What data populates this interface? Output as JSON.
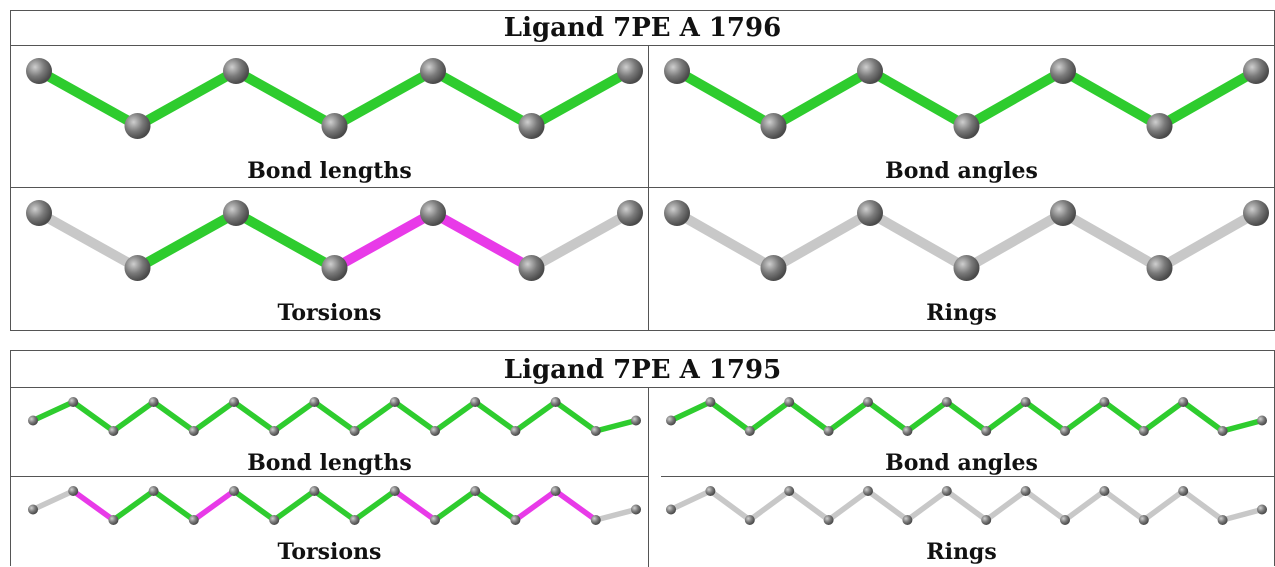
{
  "tables": [
    {
      "title": "Ligand 7PE A 1796",
      "size": "large",
      "panels": [
        {
          "caption": "Bond lengths",
          "bonds": [
            "green",
            "green",
            "green",
            "green",
            "green",
            "green"
          ]
        },
        {
          "caption": "Bond angles",
          "bonds": [
            "green",
            "green",
            "green",
            "green",
            "green",
            "green"
          ]
        },
        {
          "caption": "Torsions",
          "bonds": [
            "gray",
            "green",
            "green",
            "magenta",
            "magenta",
            "gray"
          ]
        },
        {
          "caption": "Rings",
          "bonds": [
            "gray",
            "gray",
            "gray",
            "gray",
            "gray",
            "gray"
          ]
        }
      ]
    },
    {
      "title": "Ligand 7PE A 1795",
      "size": "small",
      "panels": [
        {
          "caption": "Bond lengths",
          "bonds": [
            "green",
            "green",
            "green",
            "green",
            "green",
            "green",
            "green",
            "green",
            "green",
            "green",
            "green",
            "green",
            "green",
            "green",
            "green"
          ]
        },
        {
          "caption": "Bond angles",
          "bonds": [
            "green",
            "green",
            "green",
            "green",
            "green",
            "green",
            "green",
            "green",
            "green",
            "green",
            "green",
            "green",
            "green",
            "green",
            "green"
          ]
        },
        {
          "caption": "Torsions",
          "bonds": [
            "gray",
            "magenta",
            "green",
            "green",
            "magenta",
            "green",
            "green",
            "green",
            "green",
            "magenta",
            "green",
            "green",
            "magenta",
            "magenta",
            "gray"
          ]
        },
        {
          "caption": "Rings",
          "bonds": [
            "gray",
            "gray",
            "gray",
            "gray",
            "gray",
            "gray",
            "gray",
            "gray",
            "gray",
            "gray",
            "gray",
            "gray",
            "gray",
            "gray",
            "gray"
          ]
        }
      ]
    }
  ],
  "colors": {
    "green": "#2ecc2e",
    "magenta": "#e83ae8",
    "gray": "#c8c8c8",
    "atom": "#6e6e6e"
  }
}
